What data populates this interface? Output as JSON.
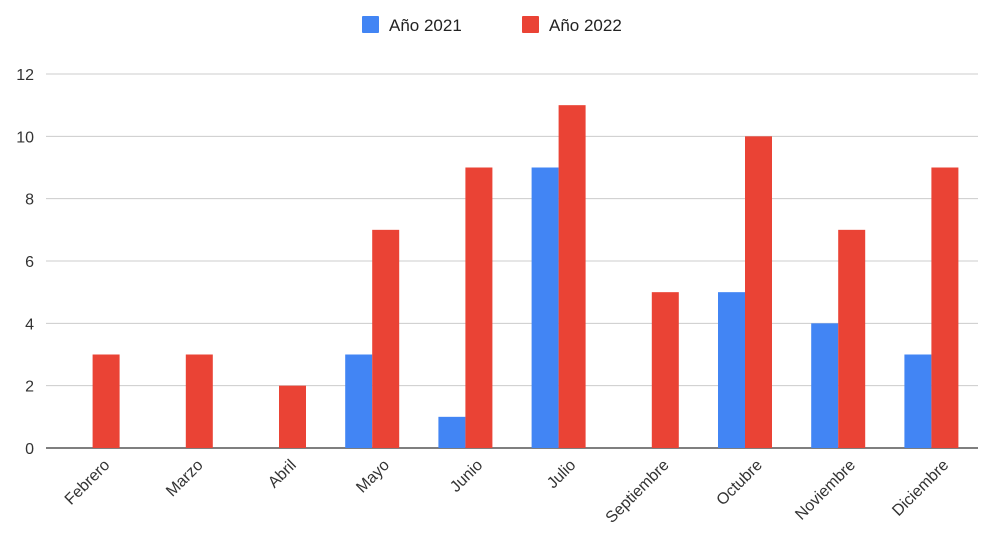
{
  "chart_data": {
    "type": "bar",
    "categories": [
      "Febrero",
      "Marzo",
      "Abril",
      "Mayo",
      "Junio",
      "Julio",
      "Septiembre",
      "Octubre",
      "Noviembre",
      "Diciembre"
    ],
    "series": [
      {
        "name": "Año 2021",
        "color": "#4285f4",
        "values": [
          0,
          0,
          0,
          3,
          1,
          9,
          0,
          5,
          4,
          3
        ]
      },
      {
        "name": "Año 2022",
        "color": "#ea4335",
        "values": [
          3,
          3,
          2,
          7,
          9,
          11,
          5,
          10,
          7,
          9
        ]
      }
    ],
    "yticks": [
      0,
      2,
      4,
      6,
      8,
      10,
      12
    ],
    "ylim": [
      0,
      12
    ],
    "grid": true,
    "legend_position": "top-center",
    "title": "",
    "xlabel": "",
    "ylabel": ""
  }
}
